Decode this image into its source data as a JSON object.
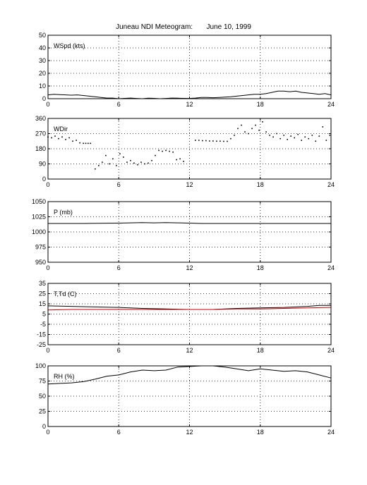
{
  "figure": {
    "title": "Juneau NDI Meteogram:       June 10, 1999"
  },
  "chart_data": [
    {
      "type": "line",
      "label": "WSpd (kts)",
      "ylim": [
        0,
        50
      ],
      "yticks": [
        0,
        10,
        20,
        30,
        40,
        50
      ],
      "xlim": [
        0,
        24
      ],
      "xticks": [
        0,
        6,
        12,
        18,
        24
      ],
      "grid": true,
      "series": [
        {
          "color": "#000000",
          "style": "line",
          "x": [
            0,
            0.5,
            1,
            1.5,
            2,
            2.5,
            3,
            3.5,
            4,
            4.5,
            5,
            5.5,
            6,
            6.5,
            7,
            7.5,
            8,
            8.5,
            9,
            9.5,
            10,
            10.5,
            11,
            11.5,
            12,
            12.5,
            13,
            13.5,
            14,
            14.5,
            15,
            15.5,
            16,
            16.5,
            17,
            17.5,
            18,
            18.5,
            19,
            19.5,
            20,
            20.5,
            21,
            21.5,
            22,
            22.5,
            23,
            23.5,
            24
          ],
          "y": [
            3,
            3.5,
            3.2,
            3,
            2.8,
            3,
            2.5,
            2,
            1.5,
            1,
            0.5,
            0.5,
            0,
            0.3,
            0.5,
            0.2,
            0,
            0.4,
            0.3,
            0,
            0.2,
            0.5,
            0.4,
            0.3,
            0.2,
            0.5,
            1,
            1,
            0.8,
            1,
            1.2,
            1.5,
            2,
            2.5,
            3,
            3.5,
            3.5,
            4,
            5,
            6,
            6,
            5.5,
            6,
            5,
            4.5,
            4,
            3.5,
            4,
            3
          ]
        }
      ]
    },
    {
      "type": "scatter",
      "label": "WDir",
      "ylim": [
        0,
        360
      ],
      "yticks": [
        0,
        90,
        180,
        270,
        360
      ],
      "xlim": [
        0,
        24
      ],
      "xticks": [
        0,
        6,
        12,
        18,
        24
      ],
      "grid": true,
      "series": [
        {
          "color": "#000000",
          "style": "points",
          "x": [
            0,
            0.3,
            0.6,
            0.9,
            1.2,
            1.5,
            1.8,
            2.1,
            2.4,
            2.7,
            3,
            3.2,
            3.4,
            3.6,
            4,
            4.3,
            4.6,
            4.9,
            5.2,
            5.5,
            5.8,
            6.1,
            6.4,
            6.7,
            7,
            7.3,
            7.6,
            7.9,
            8.2,
            8.5,
            8.8,
            9.1,
            9.4,
            9.7,
            10,
            10.3,
            10.6,
            10.9,
            11.2,
            11.5,
            12.5,
            12.8,
            13.1,
            13.4,
            13.7,
            14,
            14.3,
            14.6,
            14.9,
            15.2,
            15.5,
            15.8,
            16.1,
            16.4,
            16.7,
            17,
            17.3,
            17.6,
            17.9,
            18.2,
            18.5,
            18.8,
            19.1,
            19.4,
            19.7,
            20,
            20.3,
            20.6,
            20.9,
            21.2,
            21.5,
            21.8,
            22.1,
            22.4,
            22.7,
            23,
            23.3,
            23.6,
            23.9
          ],
          "y": [
            250,
            245,
            255,
            240,
            250,
            235,
            245,
            225,
            230,
            215,
            212,
            212,
            212,
            212,
            60,
            80,
            100,
            140,
            90,
            120,
            80,
            150,
            130,
            100,
            110,
            95,
            85,
            100,
            90,
            95,
            110,
            140,
            170,
            165,
            170,
            165,
            160,
            115,
            120,
            105,
            230,
            230,
            228,
            228,
            226,
            226,
            225,
            225,
            224,
            224,
            240,
            260,
            300,
            320,
            280,
            270,
            300,
            320,
            290,
            340,
            280,
            260,
            250,
            270,
            240,
            260,
            235,
            255,
            245,
            265,
            230,
            250,
            240,
            260,
            225,
            255,
            310,
            230,
            260
          ]
        }
      ]
    },
    {
      "type": "line",
      "label": "P (mb)",
      "ylim": [
        950,
        1050
      ],
      "yticks": [
        950,
        975,
        1000,
        1025,
        1050
      ],
      "xlim": [
        0,
        24
      ],
      "xticks": [
        0,
        6,
        12,
        18,
        24
      ],
      "grid": true,
      "series": [
        {
          "color": "#000000",
          "style": "line",
          "x": [
            0,
            3,
            6,
            7,
            8,
            9,
            10,
            11,
            12,
            13,
            15,
            18,
            21,
            24
          ],
          "y": [
            1014,
            1014,
            1014.5,
            1015,
            1015.5,
            1015,
            1015.5,
            1015,
            1014.5,
            1014,
            1014,
            1014,
            1014,
            1014
          ]
        }
      ]
    },
    {
      "type": "line",
      "label": "T,Td (C)",
      "ylim": [
        -25,
        35
      ],
      "yticks": [
        -25,
        -15,
        -5,
        5,
        15,
        25,
        35
      ],
      "xlim": [
        0,
        24
      ],
      "xticks": [
        0,
        6,
        12,
        18,
        24
      ],
      "grid": true,
      "series": [
        {
          "color": "#000000",
          "style": "line",
          "x": [
            0,
            2,
            4,
            6,
            8,
            10,
            12,
            14,
            16,
            18,
            20,
            22,
            23,
            24
          ],
          "y": [
            13,
            12.5,
            12,
            11.5,
            10.5,
            10,
            9.5,
            9.5,
            10.5,
            11,
            11.5,
            12.5,
            13.5,
            13.5
          ]
        },
        {
          "color": "#cc0000",
          "style": "line",
          "x": [
            0,
            2,
            4,
            6,
            8,
            10,
            12,
            14,
            16,
            18,
            20,
            22,
            24
          ],
          "y": [
            9,
            9.5,
            9.5,
            9.5,
            9.5,
            9.5,
            9.5,
            9.5,
            10,
            10,
            10.5,
            11,
            11.5
          ]
        }
      ]
    },
    {
      "type": "line",
      "label": "RH (%)",
      "ylim": [
        0,
        100
      ],
      "yticks": [
        0,
        25,
        50,
        75,
        100
      ],
      "xlim": [
        0,
        24
      ],
      "xticks": [
        0,
        6,
        12,
        18,
        24
      ],
      "grid": true,
      "series": [
        {
          "color": "#000000",
          "style": "line",
          "x": [
            0,
            1,
            2,
            3,
            4,
            5,
            6,
            7,
            8,
            9,
            10,
            11,
            12,
            13,
            14,
            15,
            16,
            17,
            18,
            19,
            20,
            21,
            22,
            23,
            24
          ],
          "y": [
            70,
            71,
            72,
            74,
            78,
            83,
            85,
            90,
            93,
            92,
            93,
            98,
            99,
            100,
            100,
            98,
            95,
            92,
            95,
            93,
            91,
            92,
            90,
            85,
            80
          ]
        }
      ]
    }
  ]
}
